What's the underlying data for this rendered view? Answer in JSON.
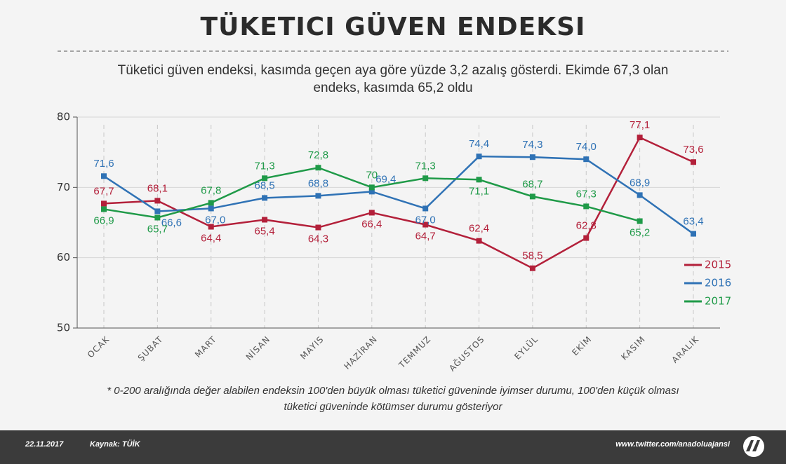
{
  "chart_data": {
    "type": "line",
    "title": "TÜKETICI GÜVEN ENDEKSI",
    "subtitle": "Tüketici güven endeksi, kasımda geçen aya göre yüzde 3,2 azalış gösterdi. Ekimde 67,3 olan endeks, kasımda 65,2 oldu",
    "categories": [
      "OCAK",
      "ŞUBAT",
      "MART",
      "NİSAN",
      "MAYIS",
      "HAZİRAN",
      "TEMMUZ",
      "AĞUSTOS",
      "EYLÜL",
      "EKİM",
      "KASIM",
      "ARALIK"
    ],
    "series": [
      {
        "name": "2015",
        "color": "#b3203a",
        "values": [
          67.7,
          68.1,
          64.4,
          65.4,
          64.3,
          66.4,
          64.7,
          62.4,
          58.5,
          62.8,
          77.1,
          73.6
        ],
        "value_labels": [
          "67,7",
          "68,1",
          "64,4",
          "65,4",
          "64,3",
          "66,4",
          "64,7",
          "62,4",
          "58,5",
          "62,8",
          "77,1",
          "73,6"
        ]
      },
      {
        "name": "2016",
        "color": "#2f72b5",
        "values": [
          71.6,
          66.6,
          67.0,
          68.5,
          68.8,
          69.4,
          67.0,
          74.4,
          74.3,
          74.0,
          68.9,
          63.4
        ],
        "value_labels": [
          "71,6",
          "66,6",
          "67,0",
          "68,5",
          "68,8",
          "69,4",
          "67,0",
          "74,4",
          "74,3",
          "74,0",
          "68,9",
          "63,4"
        ]
      },
      {
        "name": "2017",
        "color": "#1f9a48",
        "values": [
          66.9,
          65.7,
          67.8,
          71.3,
          72.8,
          70,
          71.3,
          71.1,
          68.7,
          67.3,
          65.2,
          null
        ],
        "value_labels": [
          "66,9",
          "65,7",
          "67,8",
          "71,3",
          "72,8",
          "70",
          "71,3",
          "71,1",
          "68,7",
          "67,3",
          "65,2",
          null
        ]
      }
    ],
    "ylim": [
      50,
      80
    ],
    "yticks": [
      50,
      60,
      70,
      80
    ],
    "grid": true,
    "legend": "right",
    "footnote": "* 0-200 aralığında değer alabilen endeksin 100'den büyük olması tüketici güveninde iyimser durumu, 100'den küçük olması tüketici güveninde kötümser durumu gösteriyor",
    "date": "22.11.2017",
    "source": "Kaynak: TÜİK",
    "website": "www.twitter.com/anadoluajansi"
  }
}
